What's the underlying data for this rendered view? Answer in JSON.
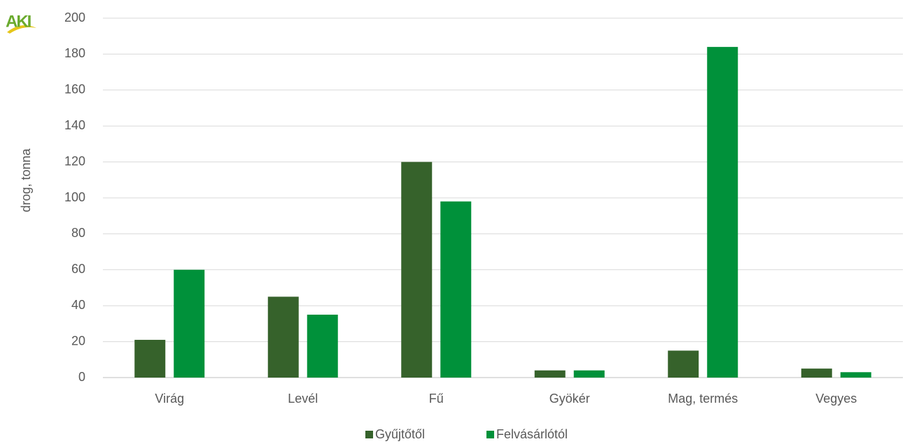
{
  "chart_data": {
    "type": "bar",
    "logo": "AKI",
    "ylabel": "drog, tonna",
    "categories": [
      "Virág",
      "Levél",
      "Fű",
      "Gyökér",
      "Mag, termés",
      "Vegyes"
    ],
    "series": [
      {
        "name": "Gyűjtőtől",
        "color": "#36622b",
        "values": [
          21,
          45,
          120,
          4,
          15,
          5
        ]
      },
      {
        "name": "Felvásárlótól",
        "color": "#00913a",
        "values": [
          60,
          35,
          98,
          4,
          184,
          3
        ]
      }
    ],
    "ylim": [
      0,
      200
    ],
    "yticks": [
      0,
      20,
      40,
      60,
      80,
      100,
      120,
      140,
      160,
      180,
      200
    ],
    "grid": true,
    "legend": "bottom"
  }
}
